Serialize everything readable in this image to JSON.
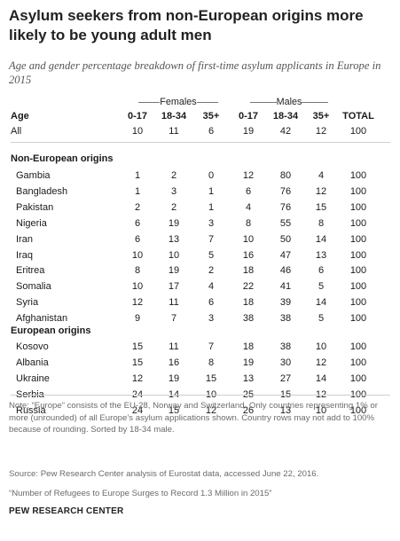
{
  "title": "Asylum seekers from non-European origins more likely to be young adult men",
  "subtitle": "Age and gender percentage breakdown of first-time asylum applicants in Europe in 2015",
  "group_headers": {
    "females": "Females",
    "males": "Males"
  },
  "chart_data": {
    "type": "table",
    "columns": [
      "Age",
      "0-17",
      "18-34",
      "35+",
      "0-17",
      "18-34",
      "35+",
      "TOTAL"
    ],
    "all_row": {
      "label": "All",
      "values": [
        10,
        11,
        6,
        19,
        42,
        12,
        100
      ]
    },
    "sections": [
      {
        "name": "Non-European origins",
        "rows": [
          {
            "label": "Gambia",
            "values": [
              1,
              2,
              0,
              12,
              80,
              4,
              100
            ]
          },
          {
            "label": "Bangladesh",
            "values": [
              1,
              3,
              1,
              6,
              76,
              12,
              100
            ]
          },
          {
            "label": "Pakistan",
            "values": [
              2,
              2,
              1,
              4,
              76,
              15,
              100
            ]
          },
          {
            "label": "Nigeria",
            "values": [
              6,
              19,
              3,
              8,
              55,
              8,
              100
            ]
          },
          {
            "label": "Iran",
            "values": [
              6,
              13,
              7,
              10,
              50,
              14,
              100
            ]
          },
          {
            "label": "Iraq",
            "values": [
              10,
              10,
              5,
              16,
              47,
              13,
              100
            ]
          },
          {
            "label": "Eritrea",
            "values": [
              8,
              19,
              2,
              18,
              46,
              6,
              100
            ]
          },
          {
            "label": "Somalia",
            "values": [
              10,
              17,
              4,
              22,
              41,
              5,
              100
            ]
          },
          {
            "label": "Syria",
            "values": [
              12,
              11,
              6,
              18,
              39,
              14,
              100
            ]
          },
          {
            "label": "Afghanistan",
            "values": [
              9,
              7,
              3,
              38,
              38,
              5,
              100
            ]
          }
        ]
      },
      {
        "name": "European origins",
        "rows": [
          {
            "label": "Kosovo",
            "values": [
              15,
              11,
              7,
              18,
              38,
              10,
              100
            ]
          },
          {
            "label": "Albania",
            "values": [
              15,
              16,
              8,
              19,
              30,
              12,
              100
            ]
          },
          {
            "label": "Ukraine",
            "values": [
              12,
              19,
              15,
              13,
              27,
              14,
              100
            ]
          },
          {
            "label": "Serbia",
            "values": [
              24,
              14,
              10,
              25,
              15,
              12,
              100
            ]
          },
          {
            "label": "Russia",
            "values": [
              24,
              15,
              12,
              26,
              13,
              10,
              100
            ]
          }
        ]
      }
    ]
  },
  "notes": {
    "note": "Note: “Europe” consists of the EU-28, Norway and Switzerland. Only countries representing 1% or more (unrounded) of all Europe’s asylum applications shown. Country rows may not add to 100% because of rounding. Sorted by 18-34 male.",
    "source": "Source: Pew Research Center analysis of Eurostat data, accessed June 22, 2016.",
    "report": "“Number of Refugees to Europe Surges to Record 1.3 Million in 2015”",
    "brand": "PEW RESEARCH CENTER"
  }
}
